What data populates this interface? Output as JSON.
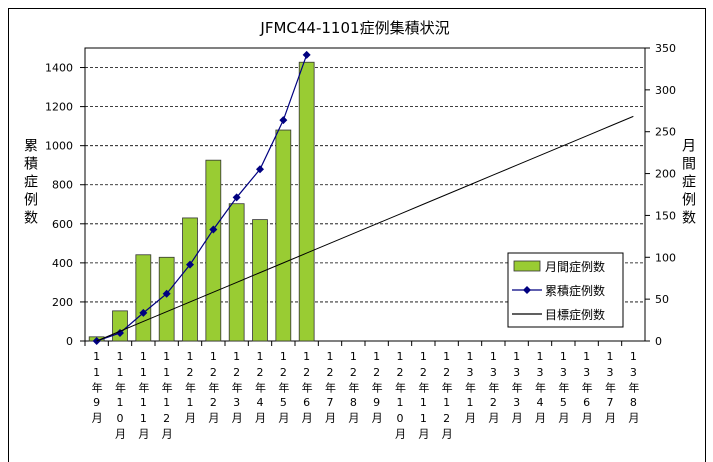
{
  "chart_data": {
    "type": "combo",
    "title": "JFMC44-1101症例集積状況",
    "ylabel": "累積症例数",
    "y2label": "月間症例数",
    "categories": [
      "11年9月",
      "11年10月",
      "11年11月",
      "11年12月",
      "12年1月",
      "12年2月",
      "12年3月",
      "12年4月",
      "12年5月",
      "12年6月",
      "12年7月",
      "12年8月",
      "12年9月",
      "12年10月",
      "12年11月",
      "12年12月",
      "13年1月",
      "13年2月",
      "13年3月",
      "13年4月",
      "13年5月",
      "13年6月",
      "13年7月",
      "13年8月"
    ],
    "ylim": [
      0,
      1500
    ],
    "yticks": [
      0,
      200,
      400,
      600,
      800,
      1000,
      1200,
      1400
    ],
    "y2lim": [
      0,
      350
    ],
    "y2ticks": [
      0,
      50,
      100,
      150,
      200,
      250,
      300,
      350
    ],
    "grid": true,
    "legend": "lower right",
    "series": [
      {
        "name": "月間症例数",
        "type": "bar",
        "axis": "y2",
        "color": "#99cc33",
        "values": [
          5,
          36,
          103,
          100,
          147,
          216,
          164,
          145,
          252,
          333,
          null,
          null,
          null,
          null,
          null,
          null,
          null,
          null,
          null,
          null,
          null,
          null,
          null,
          null
        ]
      },
      {
        "name": "累積症例数",
        "type": "line",
        "color": "#000080",
        "values": [
          0,
          41,
          144,
          242,
          391,
          571,
          735,
          879,
          1131,
          1465,
          null,
          null,
          null,
          null,
          null,
          null,
          null,
          null,
          null,
          null,
          null,
          null,
          null,
          null
        ]
      },
      {
        "name": "目標症例数",
        "type": "line",
        "color": "#000000",
        "values": [
          0,
          50,
          100,
          150,
          200,
          250,
          300,
          350,
          400,
          450,
          500,
          550,
          600,
          650,
          700,
          750,
          800,
          850,
          900,
          950,
          1000,
          1050,
          1100,
          1150
        ]
      }
    ]
  }
}
